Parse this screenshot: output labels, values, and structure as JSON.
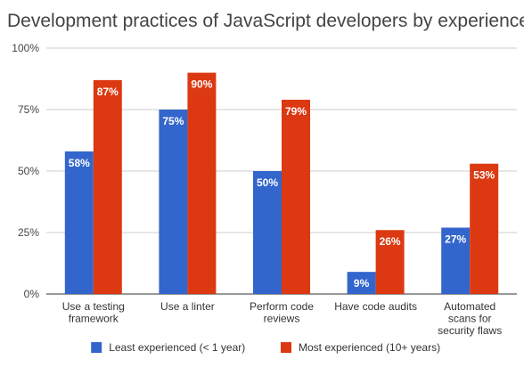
{
  "chart_data": {
    "type": "bar",
    "title": "Development practices of JavaScript developers by experience",
    "xlabel": "",
    "ylabel": "",
    "ylim": [
      0,
      100
    ],
    "yticks": [
      "0%",
      "25%",
      "50%",
      "75%",
      "100%"
    ],
    "categories": [
      [
        "Use a testing",
        "framework"
      ],
      [
        "Use a linter"
      ],
      [
        "Perform code",
        "reviews"
      ],
      [
        "Have code audits"
      ],
      [
        "Automated",
        "scans for",
        "security flaws"
      ]
    ],
    "series": [
      {
        "name": "Least experienced (< 1 year)",
        "color": "#3366cc",
        "values": [
          58,
          75,
          50,
          9,
          27
        ],
        "labels": [
          "58%",
          "75%",
          "50%",
          "9%",
          "27%"
        ]
      },
      {
        "name": "Most experienced (10+ years)",
        "color": "#dc3912",
        "values": [
          87,
          90,
          79,
          26,
          53
        ],
        "labels": [
          "87%",
          "90%",
          "79%",
          "26%",
          "53%"
        ]
      }
    ],
    "grid": true,
    "legend": "bottom"
  }
}
